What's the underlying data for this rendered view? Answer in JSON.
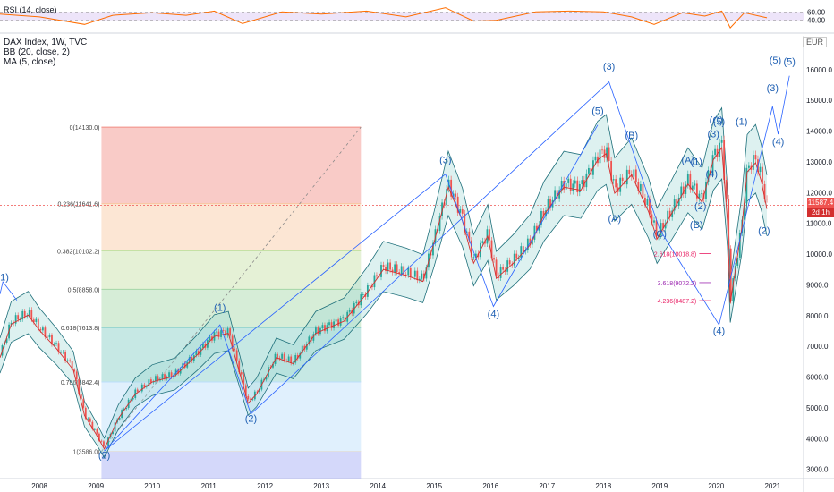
{
  "rsi_panel": {
    "label": "RSI (14, close)",
    "levels": [
      "60.00",
      "40.00"
    ]
  },
  "main_panel": {
    "symbol": "DAX Index, 1W, TVC",
    "indicators": [
      "BB (20, close, 2)",
      "MA (5, close)"
    ],
    "currency": "EUR",
    "last_price": "11587.4",
    "countdown": "2d 1h"
  },
  "colors": {
    "price_up": "#26a69a",
    "price_down": "#ef5350",
    "bollinger": "#1e6f7a",
    "bollinger_fill": "#9fd7d3",
    "ma": "#d32f2f",
    "wave_line": "#2962ff",
    "wave_text": "#1e5fb3",
    "rsi_line": "#ff6d00",
    "rsi_fill": "#e6d9f7",
    "last_price_tag": "#ef5350",
    "countdown_tag": "#d32f2f"
  },
  "chart_data": {
    "type": "line",
    "x_ticks": [
      "2008",
      "2009",
      "2010",
      "2011",
      "2012",
      "2013",
      "2014",
      "2015",
      "2016",
      "2017",
      "2018",
      "2019",
      "2020",
      "2021"
    ],
    "y_ticks": [
      3000,
      4000,
      5000,
      6000,
      7000,
      8000,
      9000,
      10000,
      11000,
      12000,
      13000,
      14000,
      15000,
      16000
    ],
    "y_tick_labels": [
      "3000.0",
      "4000.0",
      "5000.0",
      "6000.0",
      "7000.0",
      "8000.0",
      "9000.0",
      "10000.0",
      "11000.0",
      "12000.0",
      "13000.0",
      "14000.0",
      "15000.0",
      "16000.0"
    ],
    "xlim": [
      2007.3,
      2021.55
    ],
    "ylim": [
      2700,
      17100
    ],
    "price_path": [
      [
        2007.3,
        6700
      ],
      [
        2007.5,
        7800
      ],
      [
        2007.8,
        8100
      ],
      [
        2008.0,
        7600
      ],
      [
        2008.3,
        7000
      ],
      [
        2008.6,
        6300
      ],
      [
        2008.8,
        4800
      ],
      [
        2009.0,
        4200
      ],
      [
        2009.15,
        3700
      ],
      [
        2009.4,
        4700
      ],
      [
        2009.7,
        5500
      ],
      [
        2010.0,
        5900
      ],
      [
        2010.4,
        6100
      ],
      [
        2010.8,
        6800
      ],
      [
        2011.1,
        7400
      ],
      [
        2011.35,
        7500
      ],
      [
        2011.55,
        6200
      ],
      [
        2011.7,
        5200
      ],
      [
        2011.85,
        5500
      ],
      [
        2012.2,
        6700
      ],
      [
        2012.5,
        6500
      ],
      [
        2012.9,
        7500
      ],
      [
        2013.4,
        7900
      ],
      [
        2013.8,
        8800
      ],
      [
        2014.1,
        9600
      ],
      [
        2014.5,
        9400
      ],
      [
        2014.8,
        9200
      ],
      [
        2015.0,
        10500
      ],
      [
        2015.25,
        12300
      ],
      [
        2015.5,
        11200
      ],
      [
        2015.7,
        9800
      ],
      [
        2015.95,
        10700
      ],
      [
        2016.1,
        9300
      ],
      [
        2016.4,
        9800
      ],
      [
        2016.7,
        10400
      ],
      [
        2016.95,
        11400
      ],
      [
        2017.3,
        12300
      ],
      [
        2017.6,
        12200
      ],
      [
        2017.9,
        13200
      ],
      [
        2018.05,
        13400
      ],
      [
        2018.2,
        12100
      ],
      [
        2018.5,
        12700
      ],
      [
        2018.8,
        11500
      ],
      [
        2018.95,
        10600
      ],
      [
        2019.2,
        11400
      ],
      [
        2019.5,
        12400
      ],
      [
        2019.75,
        11800
      ],
      [
        2019.95,
        13200
      ],
      [
        2020.1,
        13600
      ],
      [
        2020.2,
        11200
      ],
      [
        2020.25,
        8500
      ],
      [
        2020.45,
        10900
      ],
      [
        2020.55,
        12800
      ],
      [
        2020.7,
        13100
      ],
      [
        2020.8,
        12500
      ],
      [
        2020.9,
        11587
      ]
    ],
    "rsi": {
      "levels": [
        60,
        40
      ],
      "ylim": [
        20,
        80
      ],
      "path": [
        [
          2007.3,
          55
        ],
        [
          2008.0,
          48
        ],
        [
          2008.8,
          30
        ],
        [
          2009.3,
          52
        ],
        [
          2010.0,
          58
        ],
        [
          2010.6,
          52
        ],
        [
          2011.1,
          62
        ],
        [
          2011.6,
          32
        ],
        [
          2012.3,
          60
        ],
        [
          2013.0,
          55
        ],
        [
          2013.8,
          62
        ],
        [
          2014.5,
          48
        ],
        [
          2015.2,
          70
        ],
        [
          2015.7,
          38
        ],
        [
          2016.1,
          40
        ],
        [
          2016.8,
          60
        ],
        [
          2017.4,
          62
        ],
        [
          2018.0,
          60
        ],
        [
          2018.5,
          48
        ],
        [
          2018.9,
          30
        ],
        [
          2019.4,
          58
        ],
        [
          2019.8,
          50
        ],
        [
          2020.1,
          62
        ],
        [
          2020.25,
          22
        ],
        [
          2020.5,
          58
        ],
        [
          2020.9,
          46
        ]
      ]
    },
    "fibonacci": {
      "x_range": [
        2009.1,
        2013.7
      ],
      "levels": [
        {
          "label": "0(14130.0)",
          "value": 14130.0,
          "color": "#f28b82"
        },
        {
          "label": "0.236(11641.6)",
          "value": 11641.6,
          "color": "#f8c7a0"
        },
        {
          "label": "0.382(10102.2)",
          "value": 10102.2,
          "color": "#c5e1a5"
        },
        {
          "label": "0.5(8858.0)",
          "value": 8858.0,
          "color": "#a5d6a7"
        },
        {
          "label": "0.618(7613.8)",
          "value": 7613.8,
          "color": "#80cbc4"
        },
        {
          "label": "0.786(5842.4)",
          "value": 5842.4,
          "color": "#bbdefb"
        },
        {
          "label": "1(3586.0)",
          "value": 3586.0,
          "color": "#e0e0e0"
        }
      ]
    },
    "fib_extension": {
      "labels": [
        {
          "text": "2.618(10018.8)",
          "value": 10018.8,
          "color": "#e91e63"
        },
        {
          "text": "3.618(9072.2)",
          "value": 9072.2,
          "color": "#9c27b0"
        },
        {
          "text": "4.236(8487.2)",
          "value": 8487.2,
          "color": "#e91e63"
        }
      ]
    },
    "waves": [
      {
        "label": "(1)",
        "x": 2007.35,
        "y": 9150
      },
      {
        "label": "(2)",
        "x": 2009.15,
        "y": 3350
      },
      {
        "label": "(1)",
        "x": 2011.2,
        "y": 8150
      },
      {
        "label": "(2)",
        "x": 2011.75,
        "y": 4550
      },
      {
        "label": "(3)",
        "x": 2015.2,
        "y": 12950
      },
      {
        "label": "(4)",
        "x": 2016.05,
        "y": 7950
      },
      {
        "label": "(5)",
        "x": 2017.9,
        "y": 14550
      },
      {
        "label": "(3)",
        "x": 2018.1,
        "y": 16000
      },
      {
        "label": "(B)",
        "x": 2018.5,
        "y": 13750
      },
      {
        "label": "(A)",
        "x": 2018.2,
        "y": 11050
      },
      {
        "label": "(C)",
        "x": 2019.0,
        "y": 10550
      },
      {
        "label": "(A)",
        "x": 2019.5,
        "y": 12950
      },
      {
        "label": "(B)",
        "x": 2019.65,
        "y": 10850
      },
      {
        "label": "(1)",
        "x": 2019.65,
        "y": 12900
      },
      {
        "label": "(2)",
        "x": 2019.72,
        "y": 11450
      },
      {
        "label": "(3)",
        "x": 2019.95,
        "y": 13800
      },
      {
        "label": "(4)",
        "x": 2019.92,
        "y": 12500
      },
      {
        "label": "(5)",
        "x": 2020.05,
        "y": 14200
      },
      {
        "label": "(C)",
        "x": 2020.0,
        "y": 14250
      },
      {
        "label": "(1)",
        "x": 2020.45,
        "y": 14200
      },
      {
        "label": "(4)",
        "x": 2020.05,
        "y": 7400
      },
      {
        "label": "(2)",
        "x": 2020.85,
        "y": 10650
      },
      {
        "label": "(3)",
        "x": 2021.0,
        "y": 15300
      },
      {
        "label": "(4)",
        "x": 2021.1,
        "y": 13550
      },
      {
        "label": "(5)",
        "x": 2021.05,
        "y": 16200
      },
      {
        "label": "(5)",
        "x": 2021.3,
        "y": 16150
      }
    ]
  }
}
